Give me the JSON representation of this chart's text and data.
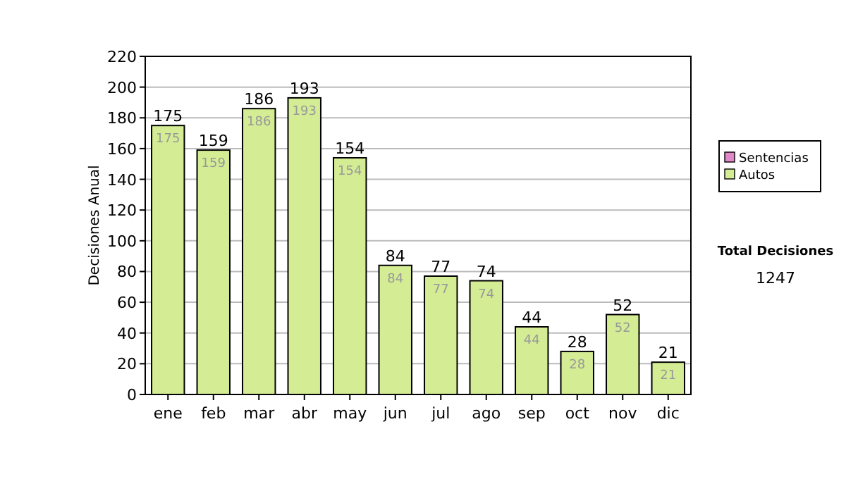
{
  "chart_data": {
    "type": "bar",
    "ylabel": "Decisiones Anual",
    "categories": [
      "ene",
      "feb",
      "mar",
      "abr",
      "may",
      "jun",
      "jul",
      "ago",
      "sep",
      "oct",
      "nov",
      "dic"
    ],
    "stacked": true,
    "series": [
      {
        "name": "Autos",
        "color": "#d4ec94",
        "values": [
          175,
          159,
          186,
          193,
          154,
          84,
          77,
          74,
          44,
          28,
          52,
          21
        ],
        "value_labels": [
          "175",
          "159",
          "186",
          "193",
          "154",
          "84",
          "77",
          "74",
          "44",
          "28",
          "52",
          "21"
        ]
      },
      {
        "name": "Sentencias",
        "color": "#e088c8",
        "values": [
          0,
          0,
          0,
          0,
          0,
          0,
          0,
          0,
          0,
          0,
          0,
          0
        ]
      }
    ],
    "totals": [
      "175",
      "159",
      "186",
      "193",
      "154",
      "84",
      "77",
      "74",
      "44",
      "28",
      "52",
      "21"
    ],
    "ylim": [
      0,
      220
    ],
    "yticks": [
      0,
      20,
      40,
      60,
      80,
      100,
      120,
      140,
      160,
      180,
      200,
      220
    ],
    "grid": "y",
    "legend": "right",
    "annotations": [
      "Total Decisiones",
      "1247"
    ]
  }
}
